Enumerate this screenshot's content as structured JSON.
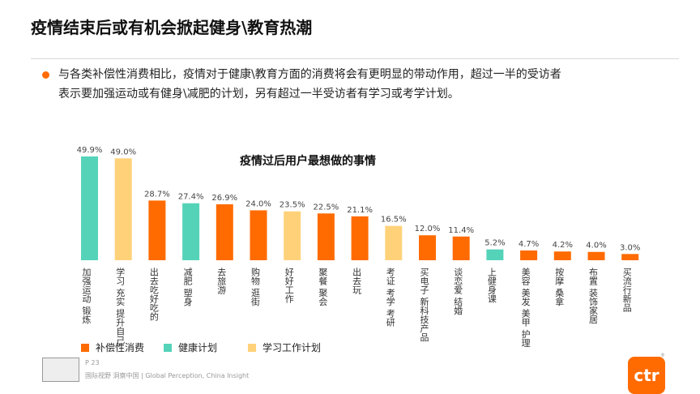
{
  "slide": {
    "title": "疫情结束后或有机会掀起健身\\教育热潮",
    "bullet_line1": "与各类补偿性消费相比，疫情对于健康\\教育方面的消费将会有更明显的带动作用，超过一半的受访者",
    "bullet_line2": "表示要加强运动或有健身\\减肥的计划，另有超过一半受访者有学习或考学计划。",
    "page_number": "P 23",
    "slogan": "国际视野  洞察中国 | Global Perception, China Insight",
    "brand": "ctr",
    "registered_mark": "®"
  },
  "legend": {
    "items": [
      {
        "label": "补偿性消费",
        "color": "#ff6b00"
      },
      {
        "label": "健康计划",
        "color": "#55d3b9"
      },
      {
        "label": "学习工作计划",
        "color": "#ffd27a"
      }
    ]
  },
  "chart_data": {
    "type": "bar",
    "title": "疫情过后用户最想做的事情",
    "xlabel": "",
    "ylabel": "",
    "ylim": [
      0,
      50
    ],
    "unit": "%",
    "grid": false,
    "legend_position": "bottom-left",
    "categories": [
      "加强运动  锻炼",
      "学习 充实 提升自己",
      "出去吃好吃的",
      "减肥  塑身",
      "去旅游",
      "购物  逛街",
      "好好工作",
      "聚餐  聚会",
      "出去玩",
      "考证 考学 考研",
      "买电子 新科技产品",
      "谈恋爱  结婚",
      "上健身课",
      "美容 美发 美甲 护理",
      "按摩 桑拿",
      "布置 装饰家居",
      "买流行新品"
    ],
    "values": [
      49.9,
      49.0,
      28.7,
      27.4,
      26.9,
      24.0,
      23.5,
      22.5,
      21.1,
      16.5,
      12.0,
      11.4,
      5.2,
      4.7,
      4.2,
      4.0,
      3.0
    ],
    "labels": [
      "49.9%",
      "49.0%",
      "28.7%",
      "27.4%",
      "26.9%",
      "24.0%",
      "23.5%",
      "22.5%",
      "21.1%",
      "16.5%",
      "12.0%",
      "11.4%",
      "5.2%",
      "4.7%",
      "4.2%",
      "4.0%",
      "3.0%"
    ],
    "groups": [
      "健康计划",
      "学习工作计划",
      "补偿性消费",
      "健康计划",
      "补偿性消费",
      "补偿性消费",
      "学习工作计划",
      "补偿性消费",
      "补偿性消费",
      "学习工作计划",
      "补偿性消费",
      "补偿性消费",
      "健康计划",
      "补偿性消费",
      "补偿性消费",
      "补偿性消费",
      "补偿性消费"
    ]
  }
}
